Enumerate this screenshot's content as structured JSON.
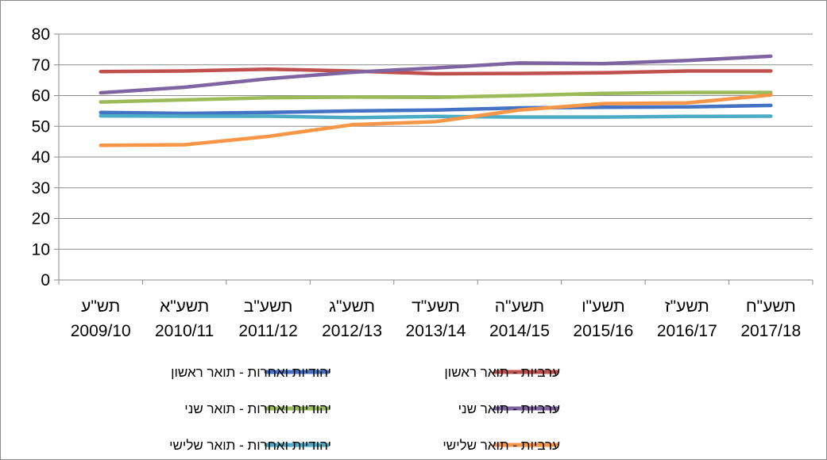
{
  "chart_data": {
    "type": "line",
    "title": "",
    "xlabel": "",
    "ylabel": "",
    "ylim": [
      0,
      80
    ],
    "yticks": [
      0,
      10,
      20,
      30,
      40,
      50,
      60,
      70,
      80
    ],
    "grid": "horizontal",
    "legend": "bottom",
    "categories": [
      {
        "year": "תש\"ע",
        "range": "2009/10"
      },
      {
        "year": "תשע\"א",
        "range": "2010/11"
      },
      {
        "year": "תשע\"ב",
        "range": "2011/12"
      },
      {
        "year": "תשע\"ג",
        "range": "2012/13"
      },
      {
        "year": "תשע\"ד",
        "range": "2013/14"
      },
      {
        "year": "תשע\"ה",
        "range": "2014/15"
      },
      {
        "year": "תשע\"ו",
        "range": "2015/16"
      },
      {
        "year": "תשע\"ז",
        "range": "2016/17"
      },
      {
        "year": "תשע\"ח",
        "range": "2017/18"
      }
    ],
    "series": [
      {
        "name": "יהודיות ואחרות - תואר ראשון",
        "color": "#4472c4",
        "values": [
          54.5,
          54.2,
          54.5,
          55.0,
          55.3,
          56.0,
          56.2,
          56.3,
          56.8
        ]
      },
      {
        "name": "ערביות - תואר ראשון",
        "color": "#c0504d",
        "values": [
          67.8,
          68.0,
          68.6,
          68.0,
          67.1,
          67.2,
          67.4,
          68.0,
          68.0
        ]
      },
      {
        "name": "יהודיות ואחרות - תואר שני",
        "color": "#9bbb59",
        "values": [
          57.9,
          58.6,
          59.3,
          59.5,
          59.4,
          60.0,
          60.7,
          61.0,
          61.0
        ]
      },
      {
        "name": "ערביות - תואר שני",
        "color": "#8064a2",
        "values": [
          60.9,
          62.7,
          65.5,
          67.6,
          69.0,
          70.6,
          70.4,
          71.4,
          72.8
        ]
      },
      {
        "name": "יהודיות ואחרות - תואר שלישי",
        "color": "#4bacc6",
        "values": [
          53.4,
          53.3,
          53.3,
          52.8,
          53.2,
          53.0,
          53.0,
          53.2,
          53.3
        ]
      },
      {
        "name": "ערביות - תואר שלישי",
        "color": "#f79646",
        "values": [
          43.8,
          44.0,
          46.7,
          50.5,
          51.5,
          55.3,
          57.4,
          57.6,
          60.2
        ]
      }
    ]
  }
}
